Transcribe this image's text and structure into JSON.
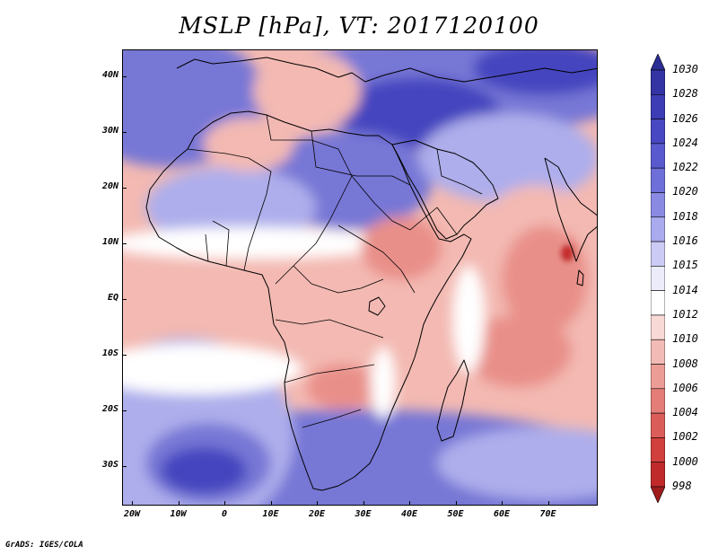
{
  "title": "MSLP [hPa], VT: 2017120100",
  "credit": "GrADS: IGES/COLA",
  "axes": {
    "lat_labels": [
      "40N",
      "30N",
      "20N",
      "10N",
      "EQ",
      "10S",
      "20S",
      "30S"
    ],
    "lon_labels": [
      "20W",
      "10W",
      "0",
      "10E",
      "20E",
      "30E",
      "40E",
      "50E",
      "60E",
      "70E"
    ]
  },
  "colorbar": {
    "labels": [
      "1030",
      "1028",
      "1026",
      "1024",
      "1022",
      "1020",
      "1018",
      "1016",
      "1015",
      "1014",
      "1012",
      "1010",
      "1008",
      "1006",
      "1004",
      "1002",
      "1000",
      "998"
    ],
    "colors": [
      "#2c2c95",
      "#3434a4",
      "#3d3db5",
      "#4848c2",
      "#5a5acf",
      "#6f6fd9",
      "#8a8ae2",
      "#aaaaee",
      "#cbcbf6",
      "#ececfb",
      "#ffffff",
      "#f8d9d5",
      "#f3bbb5",
      "#ec9d96",
      "#e47d77",
      "#db5d59",
      "#d1403d",
      "#c02a2a",
      "#9e1c1c"
    ]
  },
  "field_colors": {
    "strong_high": "#4444bf",
    "high": "#7777d6",
    "mid_high": "#aeaeec",
    "neutral": "#ffffff",
    "low": "#f3b9b2",
    "lower": "#e98f89",
    "lowest": "#c62e2e"
  }
}
